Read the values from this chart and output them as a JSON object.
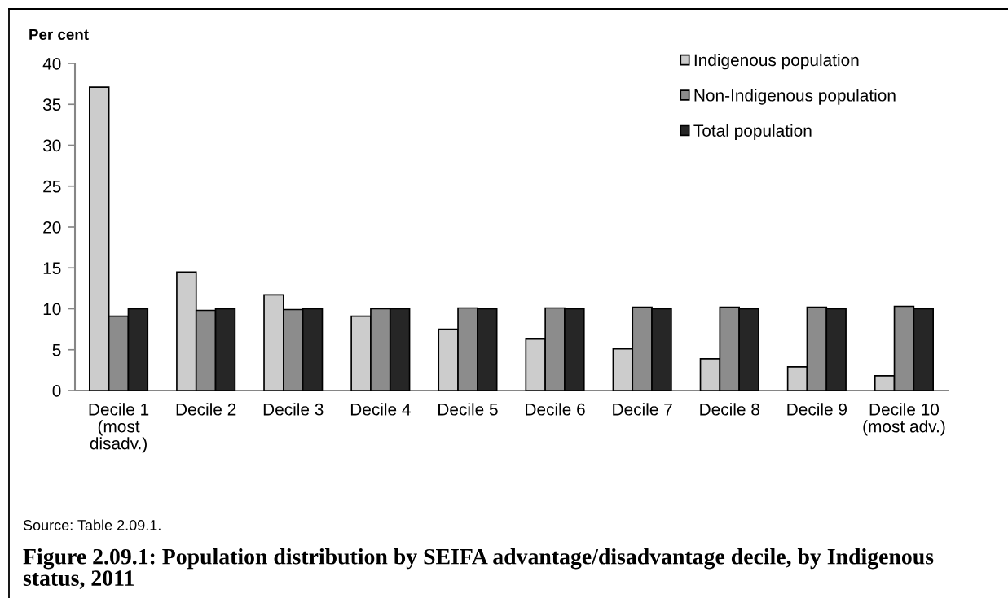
{
  "chart_data": {
    "type": "bar",
    "title": "Figure 2.09.1: Population distribution by SEIFA advantage/disadvantage decile, by Indigenous\nstatus, 2011",
    "ylabel": "Per cent",
    "annotations": [
      "Source: Table 2.09.1."
    ],
    "categories": [
      "Decile 1\n(most\ndisadv.)",
      "Decile 2",
      "Decile 3",
      "Decile 4",
      "Decile 5",
      "Decile 6",
      "Decile 7",
      "Decile 8",
      "Decile 9",
      "Decile 10\n(most adv.)"
    ],
    "series": [
      {
        "name": "Indigenous population",
        "color": "#cccccc",
        "values": [
          37.1,
          14.5,
          11.7,
          9.1,
          7.5,
          6.3,
          5.1,
          3.9,
          2.9,
          1.8
        ]
      },
      {
        "name": "Non-Indigenous population",
        "color": "#8c8c8c",
        "values": [
          9.1,
          9.8,
          9.9,
          10.0,
          10.1,
          10.1,
          10.2,
          10.2,
          10.2,
          10.3
        ]
      },
      {
        "name": "Total population",
        "color": "#262626",
        "values": [
          10.0,
          10.0,
          10.0,
          10.0,
          10.0,
          10.0,
          10.0,
          10.0,
          10.0,
          10.0
        ]
      }
    ],
    "ylim": [
      0,
      40
    ],
    "yticks": [
      0,
      5,
      10,
      15,
      20,
      25,
      30,
      35,
      40
    ],
    "legend": "top right"
  }
}
